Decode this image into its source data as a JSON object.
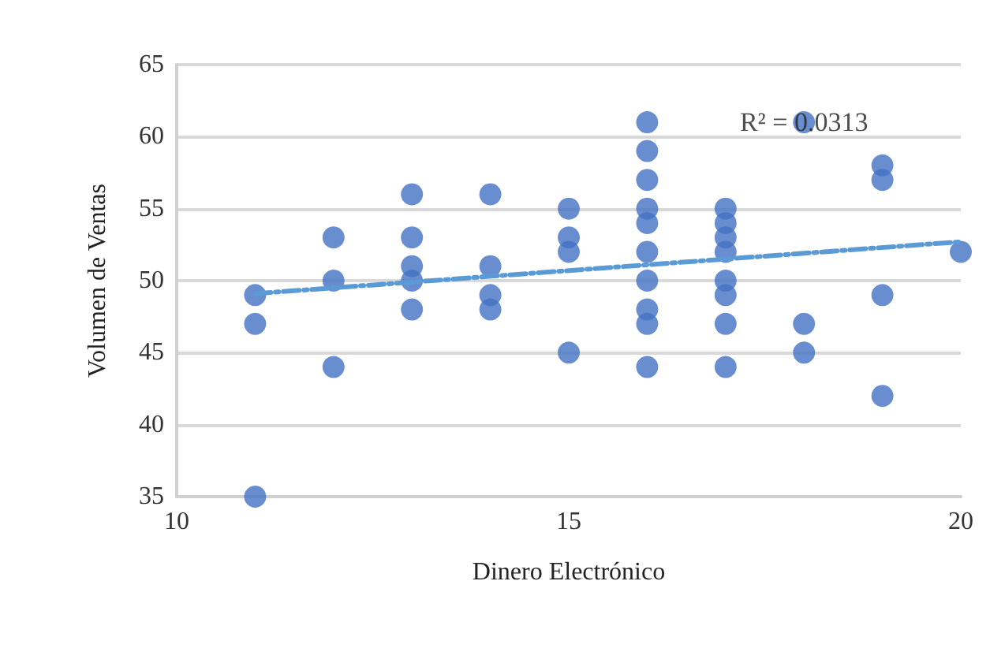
{
  "chart_data": {
    "type": "scatter",
    "xlabel": "Dinero Electrónico",
    "ylabel": "Volumen de Ventas",
    "xlim": [
      10,
      20
    ],
    "xticks": [
      10,
      15,
      20
    ],
    "ylim": [
      35,
      65
    ],
    "yticks": [
      35,
      40,
      45,
      50,
      55,
      60,
      65
    ],
    "grid": "y",
    "annotations": [
      {
        "text": "R² = 0.0313",
        "x": 18,
        "y": 61
      }
    ],
    "series": [
      {
        "color": "#4472c4",
        "marker": "circle",
        "x": [
          11,
          11,
          11,
          12,
          12,
          12,
          13,
          13,
          13,
          13,
          13,
          14,
          14,
          14,
          14,
          15,
          15,
          15,
          15,
          16,
          16,
          16,
          16,
          16,
          16,
          16,
          16,
          16,
          16,
          17,
          17,
          17,
          17,
          17,
          17,
          17,
          17,
          18,
          18,
          18,
          19,
          19,
          19,
          19,
          20
        ],
        "values": [
          49,
          47,
          35,
          53,
          50,
          44,
          56,
          53,
          51,
          50,
          48,
          56,
          51,
          49,
          48,
          55,
          53,
          52,
          45,
          61,
          59,
          57,
          55,
          54,
          52,
          50,
          48,
          47,
          44,
          55,
          54,
          53,
          52,
          50,
          49,
          47,
          44,
          61,
          47,
          45,
          58,
          57,
          49,
          42,
          52
        ]
      },
      {
        "type": "line",
        "color": "#5b9bd5",
        "marker": "none",
        "line_style": "dashed",
        "x": [
          11,
          20
        ],
        "values": [
          49.1,
          52.7
        ]
      }
    ]
  }
}
